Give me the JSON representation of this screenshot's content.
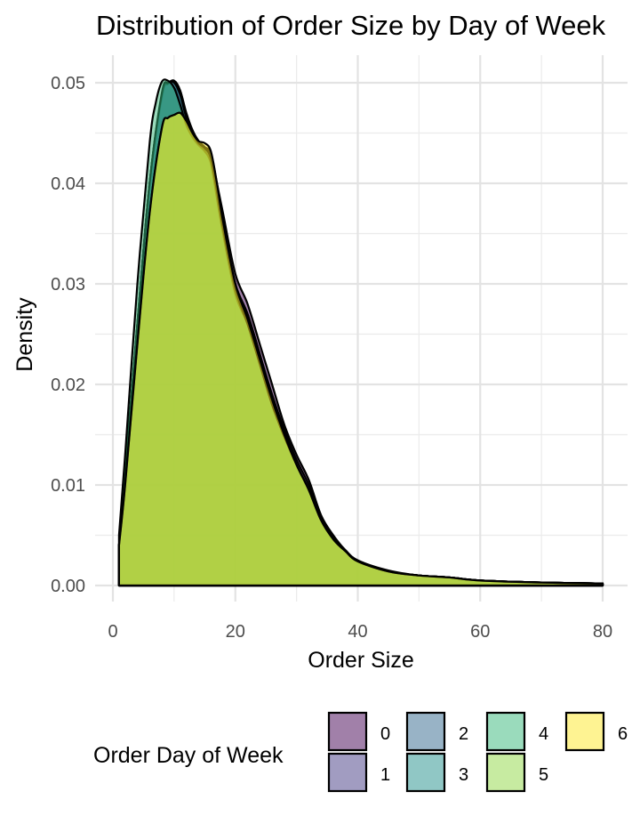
{
  "chart_data": {
    "type": "area",
    "title": "Distribution of Order Size by Day of Week",
    "xlabel": "Order Size",
    "ylabel": "Density",
    "xlim": [
      0,
      80
    ],
    "ylim": [
      0,
      0.05
    ],
    "x_ticks": [
      0,
      20,
      40,
      60,
      80
    ],
    "y_ticks": [
      0.0,
      0.01,
      0.02,
      0.03,
      0.04,
      0.05
    ],
    "y_tick_labels": [
      "0.00",
      "0.01",
      "0.02",
      "0.03",
      "0.04",
      "0.05"
    ],
    "grid": true,
    "legend": {
      "title": "Order Day of Week",
      "placement": "bottom",
      "entries": [
        "0",
        "1",
        "2",
        "3",
        "4",
        "5",
        "6"
      ]
    },
    "colors": {
      "0": "#440154",
      "1": "#443a83",
      "2": "#31688e",
      "3": "#21908c",
      "4": "#35b779",
      "5": "#8fd744",
      "6": "#fde725"
    },
    "series": [
      {
        "name": "0",
        "x": [
          1,
          2,
          4,
          6,
          8,
          9,
          10,
          11,
          12,
          13,
          14,
          15,
          16,
          17,
          18,
          20,
          22,
          24,
          26,
          28,
          30,
          32,
          34,
          36,
          38,
          40,
          45,
          50,
          55,
          60,
          70,
          80
        ],
        "values": [
          0.004,
          0.011,
          0.026,
          0.04,
          0.0485,
          0.05,
          0.0495,
          0.0488,
          0.0465,
          0.045,
          0.0441,
          0.0436,
          0.043,
          0.04,
          0.037,
          0.031,
          0.028,
          0.024,
          0.02,
          0.016,
          0.013,
          0.0105,
          0.007,
          0.005,
          0.0035,
          0.0025,
          0.0015,
          0.001,
          0.0008,
          0.0005,
          0.0003,
          0.0002
        ]
      },
      {
        "name": "1",
        "x": [
          1,
          2,
          4,
          6,
          8,
          9,
          10,
          11,
          12,
          13,
          14,
          15,
          16,
          17,
          18,
          20,
          22,
          24,
          26,
          28,
          30,
          32,
          34,
          36,
          38,
          40,
          45,
          50,
          55,
          60,
          70,
          80
        ],
        "values": [
          0.004,
          0.011,
          0.026,
          0.04,
          0.0488,
          0.0499,
          0.0502,
          0.0492,
          0.0468,
          0.0452,
          0.0442,
          0.0436,
          0.0428,
          0.0395,
          0.036,
          0.03,
          0.027,
          0.023,
          0.019,
          0.0155,
          0.0125,
          0.01,
          0.0068,
          0.0048,
          0.0035,
          0.0025,
          0.0014,
          0.001,
          0.0008,
          0.0005,
          0.0003,
          0.0002
        ]
      },
      {
        "name": "2",
        "x": [
          1,
          2,
          4,
          6,
          8,
          9,
          10,
          11,
          12,
          13,
          14,
          15,
          16,
          17,
          18,
          20,
          22,
          24,
          26,
          28,
          30,
          32,
          34,
          36,
          38,
          40,
          45,
          50,
          55,
          60,
          70,
          80
        ],
        "values": [
          0.004,
          0.011,
          0.026,
          0.04,
          0.0488,
          0.0499,
          0.0502,
          0.0492,
          0.047,
          0.0453,
          0.0442,
          0.0436,
          0.0428,
          0.0393,
          0.0358,
          0.03,
          0.027,
          0.023,
          0.0185,
          0.015,
          0.012,
          0.0095,
          0.0065,
          0.0046,
          0.0034,
          0.0024,
          0.0014,
          0.001,
          0.0008,
          0.0005,
          0.0003,
          0.0002
        ]
      },
      {
        "name": "3",
        "x": [
          1,
          2,
          4,
          6,
          8,
          9,
          10,
          11,
          12,
          13,
          14,
          15,
          16,
          17,
          18,
          20,
          22,
          24,
          26,
          28,
          30,
          32,
          34,
          36,
          38,
          40,
          45,
          50,
          55,
          60,
          70,
          80
        ],
        "values": [
          0.004,
          0.011,
          0.026,
          0.04,
          0.049,
          0.05,
          0.05,
          0.0488,
          0.0465,
          0.045,
          0.044,
          0.0435,
          0.0425,
          0.039,
          0.0355,
          0.0295,
          0.0265,
          0.0225,
          0.018,
          0.015,
          0.012,
          0.0095,
          0.0065,
          0.0046,
          0.0034,
          0.0024,
          0.0014,
          0.001,
          0.0008,
          0.0005,
          0.0003,
          0.0002
        ]
      },
      {
        "name": "4",
        "x": [
          1,
          2,
          4,
          6,
          7,
          8,
          9,
          10,
          11,
          12,
          13,
          14,
          15,
          16,
          17,
          18,
          20,
          22,
          24,
          26,
          28,
          30,
          32,
          34,
          36,
          38,
          40,
          45,
          50,
          55,
          60,
          70,
          80
        ],
        "values": [
          0.005,
          0.013,
          0.03,
          0.044,
          0.048,
          0.0501,
          0.0502,
          0.0495,
          0.0478,
          0.0458,
          0.0446,
          0.0438,
          0.0432,
          0.042,
          0.0385,
          0.035,
          0.029,
          0.026,
          0.022,
          0.018,
          0.0148,
          0.012,
          0.0095,
          0.0065,
          0.0046,
          0.0034,
          0.0024,
          0.0014,
          0.001,
          0.0008,
          0.0005,
          0.0003,
          0.0002
        ]
      },
      {
        "name": "5",
        "x": [
          1,
          2,
          4,
          6,
          8,
          9,
          10,
          11,
          12,
          13,
          14,
          15,
          16,
          17,
          18,
          20,
          22,
          24,
          26,
          28,
          30,
          32,
          34,
          36,
          38,
          40,
          45,
          50,
          55,
          60,
          70,
          80
        ],
        "values": [
          0.004,
          0.01,
          0.024,
          0.037,
          0.0455,
          0.0465,
          0.0468,
          0.047,
          0.0462,
          0.045,
          0.044,
          0.0435,
          0.0425,
          0.0392,
          0.0355,
          0.0295,
          0.026,
          0.022,
          0.018,
          0.0148,
          0.012,
          0.0095,
          0.0065,
          0.0046,
          0.0034,
          0.0024,
          0.0014,
          0.001,
          0.0008,
          0.0005,
          0.0003,
          0.0002
        ]
      },
      {
        "name": "6",
        "x": [
          1,
          2,
          4,
          6,
          8,
          9,
          10,
          11,
          12,
          13,
          14,
          15,
          16,
          17,
          18,
          20,
          22,
          24,
          26,
          28,
          30,
          32,
          34,
          36,
          38,
          40,
          45,
          50,
          55,
          60,
          70,
          80
        ],
        "values": [
          0.004,
          0.01,
          0.024,
          0.037,
          0.0455,
          0.0465,
          0.0468,
          0.047,
          0.0462,
          0.045,
          0.0442,
          0.044,
          0.0432,
          0.04,
          0.0362,
          0.03,
          0.0265,
          0.0225,
          0.0185,
          0.015,
          0.012,
          0.0095,
          0.0065,
          0.0046,
          0.0034,
          0.0024,
          0.0014,
          0.001,
          0.0008,
          0.0005,
          0.0003,
          0.0002
        ]
      }
    ]
  }
}
